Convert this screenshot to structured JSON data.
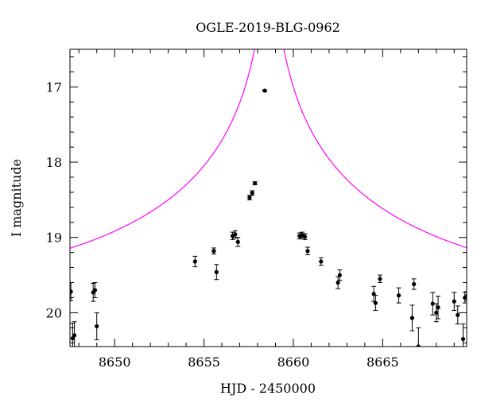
{
  "chart_data": {
    "type": "scatter",
    "title": "OGLE-2019-BLG-0962",
    "xlabel": "HJD - 2450000",
    "ylabel": "I magnitude",
    "xlim": [
      8647.5,
      8669.7
    ],
    "ylim": [
      20.45,
      16.5
    ],
    "y_inverted": true,
    "x_ticks": [
      8650,
      8655,
      8660,
      8665
    ],
    "y_ticks": [
      17,
      18,
      19,
      20
    ],
    "grid": false,
    "colors": {
      "points": "#000000",
      "model": "#ff00ff"
    },
    "model": {
      "name": "",
      "t0": 8658.65,
      "tE": 19.0,
      "u0": 0.0148,
      "baseline_mag": 19.85
    },
    "series": [
      {
        "name": "",
        "points": [
          {
            "x": 8647.55,
            "y": 19.72,
            "err": 0.12
          },
          {
            "x": 8647.65,
            "y": 20.34,
            "err": 0.2
          },
          {
            "x": 8647.75,
            "y": 20.3,
            "err": 0.18
          },
          {
            "x": 8648.8,
            "y": 19.73,
            "err": 0.12
          },
          {
            "x": 8648.9,
            "y": 19.7,
            "err": 0.1
          },
          {
            "x": 8649.0,
            "y": 20.18,
            "err": 0.18
          },
          {
            "x": 8654.5,
            "y": 19.32,
            "err": 0.07
          },
          {
            "x": 8655.55,
            "y": 19.18,
            "err": 0.04
          },
          {
            "x": 8655.7,
            "y": 19.46,
            "err": 0.1
          },
          {
            "x": 8656.6,
            "y": 18.98,
            "err": 0.05
          },
          {
            "x": 8656.75,
            "y": 18.96,
            "err": 0.05
          },
          {
            "x": 8656.9,
            "y": 19.06,
            "err": 0.06
          },
          {
            "x": 8657.55,
            "y": 18.47,
            "err": 0.03
          },
          {
            "x": 8657.7,
            "y": 18.41,
            "err": 0.03
          },
          {
            "x": 8657.85,
            "y": 18.28,
            "err": 0.02
          },
          {
            "x": 8658.4,
            "y": 17.05,
            "err": 0.01
          },
          {
            "x": 8660.35,
            "y": 18.98,
            "err": 0.04
          },
          {
            "x": 8660.5,
            "y": 18.97,
            "err": 0.04
          },
          {
            "x": 8660.65,
            "y": 18.99,
            "err": 0.04
          },
          {
            "x": 8660.8,
            "y": 19.18,
            "err": 0.05
          },
          {
            "x": 8661.55,
            "y": 19.32,
            "err": 0.05
          },
          {
            "x": 8662.5,
            "y": 19.6,
            "err": 0.08
          },
          {
            "x": 8662.6,
            "y": 19.5,
            "err": 0.07
          },
          {
            "x": 8664.5,
            "y": 19.75,
            "err": 0.1
          },
          {
            "x": 8664.6,
            "y": 19.87,
            "err": 0.1
          },
          {
            "x": 8664.85,
            "y": 19.55,
            "err": 0.05
          },
          {
            "x": 8665.9,
            "y": 19.77,
            "err": 0.1
          },
          {
            "x": 8666.65,
            "y": 20.07,
            "err": 0.17
          },
          {
            "x": 8666.75,
            "y": 19.62,
            "err": 0.07
          },
          {
            "x": 8667.0,
            "y": 20.45,
            "err": 0.25
          },
          {
            "x": 8667.8,
            "y": 19.88,
            "err": 0.15
          },
          {
            "x": 8668.0,
            "y": 20.0,
            "err": 0.12
          },
          {
            "x": 8668.1,
            "y": 19.93,
            "err": 0.15
          },
          {
            "x": 8669.0,
            "y": 19.85,
            "err": 0.12
          },
          {
            "x": 8669.2,
            "y": 20.03,
            "err": 0.12
          },
          {
            "x": 8669.5,
            "y": 20.35,
            "err": 0.2
          },
          {
            "x": 8669.6,
            "y": 19.8,
            "err": 0.07
          },
          {
            "x": 8669.7,
            "y": 19.78,
            "err": 0.06
          }
        ]
      }
    ]
  }
}
